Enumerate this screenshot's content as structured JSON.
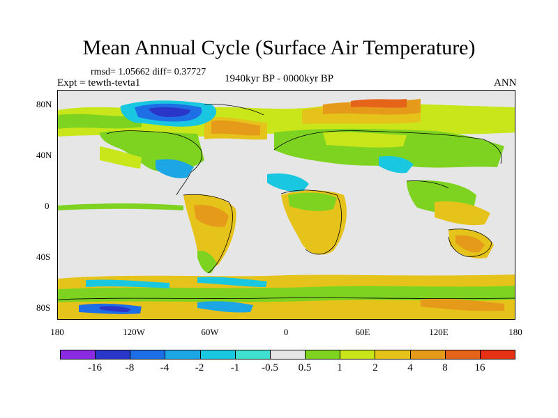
{
  "title": "Mean Annual Cycle (Surface Air Temperature)",
  "stats": "rmsd= 1.05662 diff= 0.37727",
  "experiment": "Expt = tewth-tevta1",
  "period": "1940kyr BP - 0000kyr BP",
  "season": "ANN",
  "lat_ticks": [
    "80N",
    "40N",
    "0",
    "40S",
    "80S"
  ],
  "lon_ticks": [
    "180",
    "120W",
    "60W",
    "0",
    "60E",
    "120E",
    "180"
  ],
  "colorbar": {
    "labels": [
      "-16",
      "-8",
      "-4",
      "-2",
      "-1",
      "-0.5",
      "0.5",
      "1",
      "2",
      "4",
      "8",
      "16"
    ],
    "colors": [
      "#8a2be2",
      "#2a36c8",
      "#1e6ee6",
      "#1ca6e6",
      "#19c8e0",
      "#40e0d0",
      "#e6e6e6",
      "#7ed321",
      "#c8e61a",
      "#e6c31a",
      "#e69a1a",
      "#e6641a",
      "#e63214"
    ]
  }
}
